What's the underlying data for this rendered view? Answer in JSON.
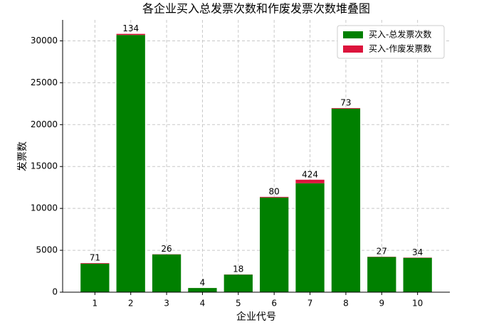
{
  "chart_data": {
    "type": "stacked_bar",
    "title": "各企业买入总发票次数和作废发票次数堆叠图",
    "x_label": "企业代号",
    "y_label": "发票数",
    "categories": [
      "1",
      "2",
      "3",
      "4",
      "5",
      "6",
      "7",
      "8",
      "9",
      "10"
    ],
    "series": [
      {
        "name": "买入-总发票次数",
        "color": "#008000",
        "values": [
          3400,
          30700,
          4500,
          500,
          2100,
          11300,
          13000,
          21900,
          4200,
          4100
        ]
      },
      {
        "name": "买入-作废发票数",
        "color": "#dc143c",
        "values": [
          71,
          134,
          26,
          4,
          18,
          80,
          424,
          73,
          27,
          34
        ]
      }
    ],
    "ylim": [
      0,
      32500
    ],
    "yticks": [
      0,
      5000,
      10000,
      15000,
      20000,
      25000,
      30000
    ],
    "grid": true,
    "legend": "upper right"
  }
}
